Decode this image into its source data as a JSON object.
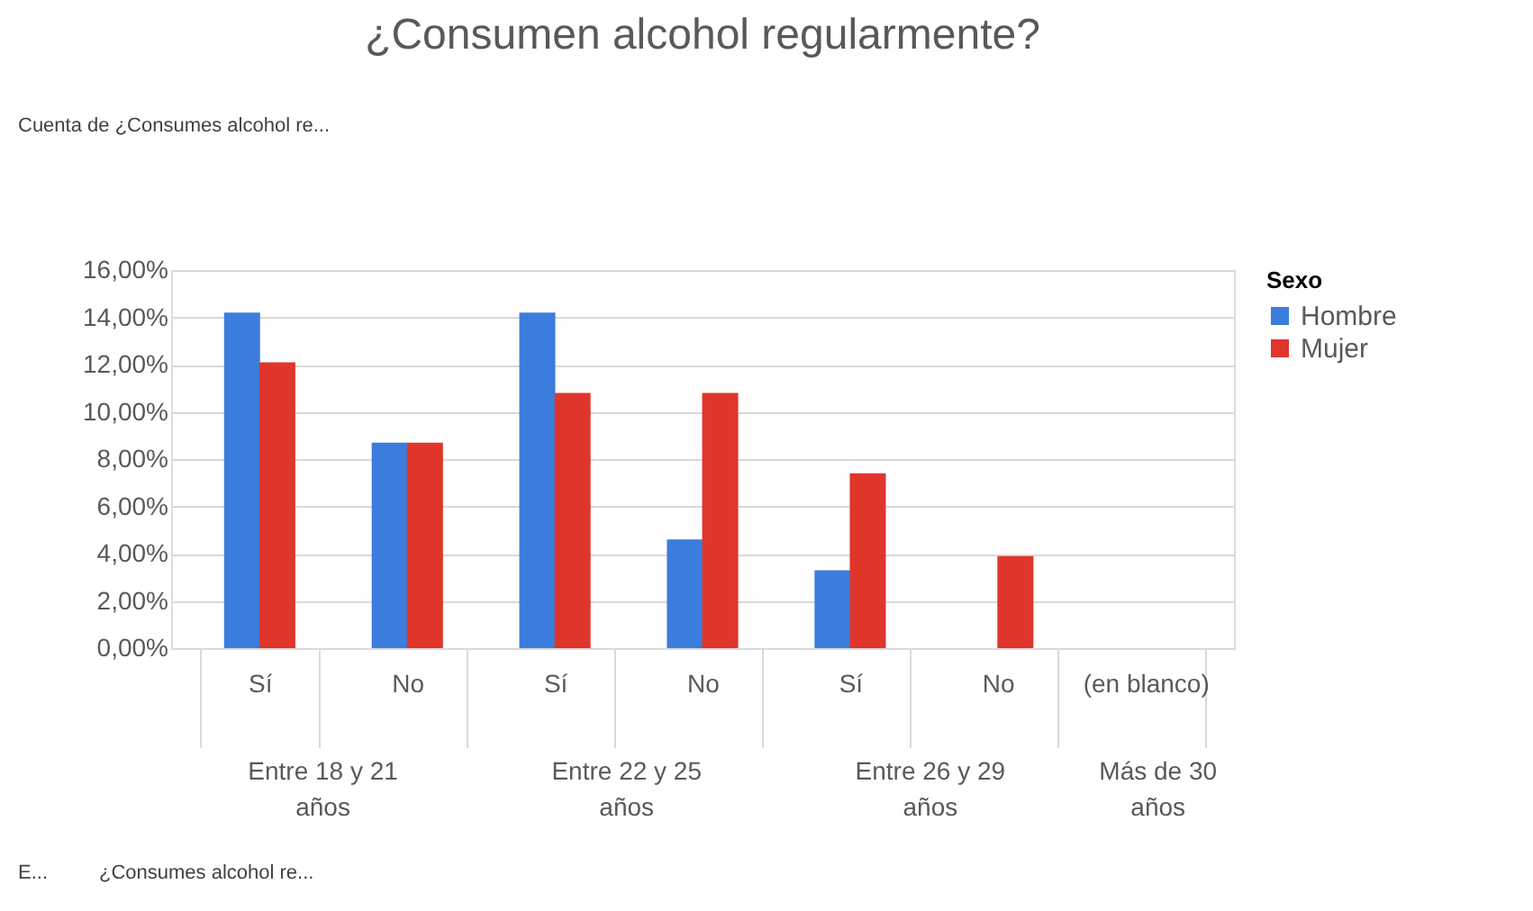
{
  "chart_data": {
    "type": "bar",
    "title": "¿Consumen alcohol regularmente?",
    "categories": [
      "Sí",
      "No",
      "Sí",
      "No",
      "Sí",
      "No",
      "(en blanco)"
    ],
    "series": [
      {
        "name": "Hombre",
        "color": "#3b7ddd",
        "values": [
          14.2,
          8.7,
          14.2,
          4.6,
          3.3,
          null,
          null
        ]
      },
      {
        "name": "Mujer",
        "color": "#e0352b",
        "values": [
          12.1,
          8.7,
          10.8,
          10.8,
          7.4,
          3.9,
          null
        ]
      }
    ],
    "ylim": [
      0,
      16
    ],
    "yticks": [
      {
        "value": 0,
        "label": "0,00%"
      },
      {
        "value": 2,
        "label": "2,00%"
      },
      {
        "value": 4,
        "label": "4,00%"
      },
      {
        "value": 6,
        "label": "6,00%"
      },
      {
        "value": 8,
        "label": "8,00%"
      },
      {
        "value": 10,
        "label": "10,00%"
      },
      {
        "value": 12,
        "label": "12,00%"
      },
      {
        "value": 14,
        "label": "14,00%"
      },
      {
        "value": 16,
        "label": "16,00%"
      }
    ],
    "legend_title": "Sexo",
    "legend": "right",
    "grid": "y",
    "annotations": [
      "Cuenta de ¿Consumes alcohol re...",
      "Entre 18 y 21 años",
      "Entre 22 y 25 años",
      "Entre 26 y 29 años",
      "Más de 30 años",
      "E...",
      "¿Consumes alcohol re..."
    ]
  }
}
